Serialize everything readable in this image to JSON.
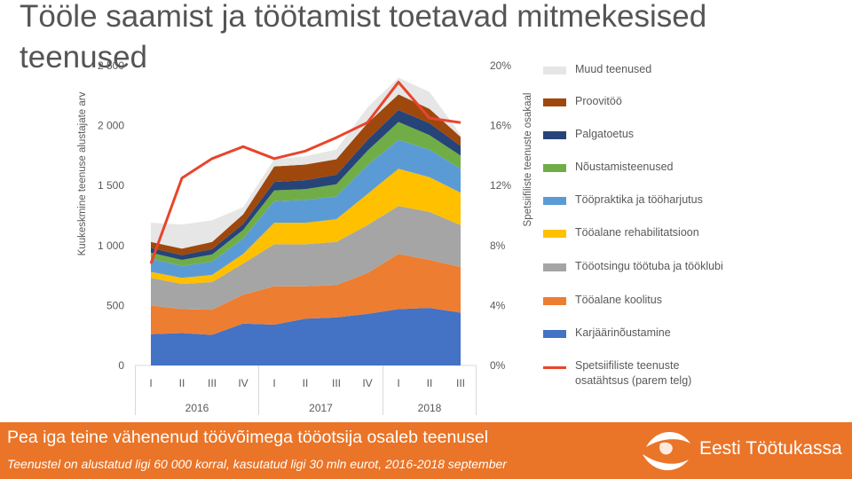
{
  "slide": {
    "title": "Tööle saamist ja töötamist toetavad mitmekesised teenused"
  },
  "footer": {
    "headline": "Pea iga teine vähenenud töövõimega tööotsija osaleb teenusel",
    "subline": "Teenustel on alustatud ligi 60 000 korral, kasutatud ligi 30 mln eurot, 2016-2018 september",
    "brand": "Eesti Töötukassa"
  },
  "colors": {
    "footer_background": "#ea7427",
    "brand_white": "#ffffff"
  },
  "chart_data": {
    "type": "area",
    "stacked": true,
    "quarters": [
      "I",
      "II",
      "III",
      "IV",
      "I",
      "II",
      "III",
      "IV",
      "I",
      "II",
      "III"
    ],
    "years": [
      {
        "label": "2016",
        "quarters": 4
      },
      {
        "label": "2017",
        "quarters": 4
      },
      {
        "label": "2018",
        "quarters": 3
      }
    ],
    "ylabel": "Kuukeskmine teenuse alustajate arv",
    "y2label": "Spetsiifiliste teenuste osakaal",
    "ylim": [
      0,
      2500
    ],
    "yticks": [
      "0",
      "500",
      "1 000",
      "1 500",
      "2 000",
      "2 500"
    ],
    "y2lim": [
      0,
      20
    ],
    "y2ticks": [
      "0%",
      "4%",
      "8%",
      "12%",
      "16%",
      "20%"
    ],
    "legend_position": "right",
    "series": [
      {
        "name": "Karjäärinõustamine",
        "color": "#4472c4",
        "values": [
          260,
          270,
          255,
          350,
          340,
          390,
          400,
          430,
          470,
          480,
          440
        ]
      },
      {
        "name": "Tööalane koolitus",
        "color": "#ed7d31",
        "values": [
          240,
          200,
          210,
          240,
          320,
          270,
          270,
          340,
          460,
          400,
          380
        ]
      },
      {
        "name": "Tööotsingu töötuba ja tööklubi",
        "color": "#a5a5a5",
        "values": [
          230,
          210,
          230,
          260,
          350,
          350,
          360,
          400,
          400,
          400,
          350
        ]
      },
      {
        "name": "Tööalane rehabilitatsioon",
        "color": "#ffc000",
        "values": [
          50,
          50,
          60,
          80,
          180,
          180,
          190,
          260,
          310,
          290,
          270
        ]
      },
      {
        "name": "Tööpraktika ja tööharjutus",
        "color": "#5b9bd5",
        "values": [
          110,
          100,
          110,
          130,
          180,
          190,
          190,
          240,
          240,
          230,
          200
        ]
      },
      {
        "name": "Nõustamisteenused",
        "color": "#70ad47",
        "values": [
          50,
          50,
          60,
          70,
          90,
          90,
          100,
          120,
          150,
          120,
          110
        ]
      },
      {
        "name": "Palgatoetus",
        "color": "#264478",
        "values": [
          40,
          40,
          45,
          50,
          70,
          75,
          80,
          90,
          100,
          100,
          80
        ]
      },
      {
        "name": "Proovitöö",
        "color": "#9e480e",
        "values": [
          50,
          55,
          60,
          80,
          130,
          130,
          130,
          140,
          130,
          120,
          75
        ]
      },
      {
        "name": "Muud teenused",
        "color": "#e6e6e6",
        "values": [
          160,
          200,
          180,
          60,
          60,
          70,
          80,
          130,
          140,
          140,
          20
        ]
      }
    ],
    "line_series": {
      "name": "Spetsiifiliste teenuste osatähtsus (parem telg)",
      "color": "#e8452c",
      "axis": "right",
      "values": [
        6.8,
        12.5,
        13.8,
        14.6,
        13.8,
        14.3,
        15.2,
        16.2,
        18.9,
        16.5,
        16.2
      ]
    }
  }
}
